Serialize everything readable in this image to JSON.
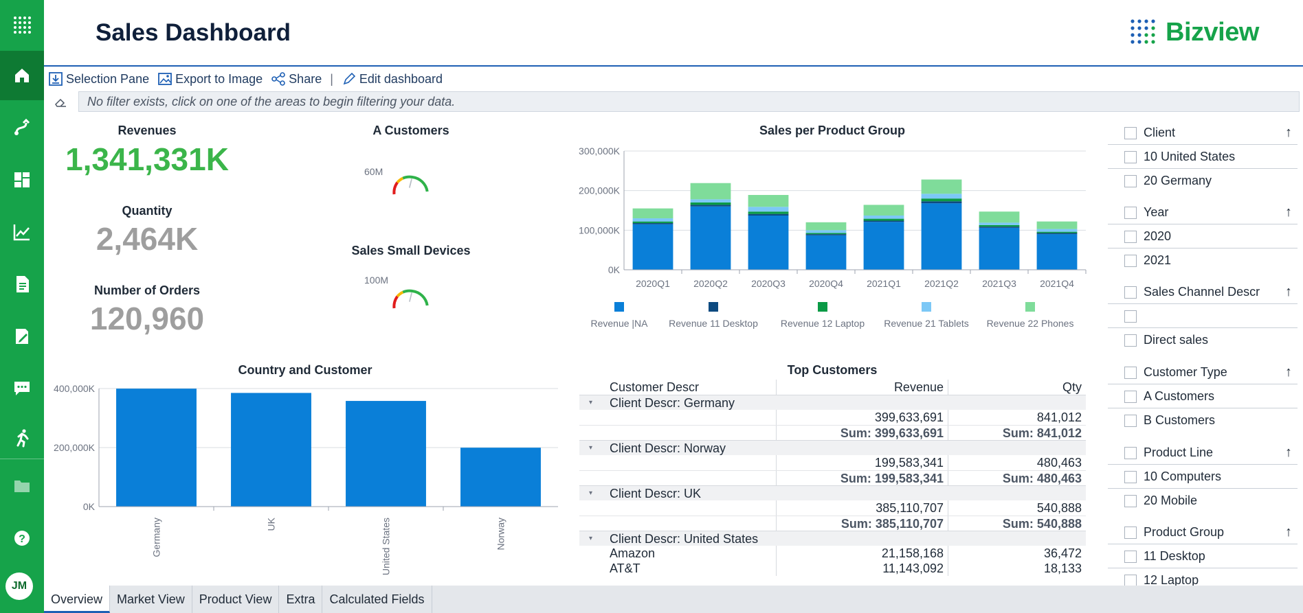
{
  "header": {
    "title": "Sales Dashboard",
    "logo_text": "Bizview"
  },
  "sidebar": {
    "items": [
      {
        "name": "home-icon",
        "active": true
      },
      {
        "name": "route-icon"
      },
      {
        "name": "dashboard-icon"
      },
      {
        "name": "line-chart-icon"
      },
      {
        "name": "document-icon"
      },
      {
        "name": "edit-document-icon"
      },
      {
        "name": "chat-icon"
      },
      {
        "name": "runner-icon"
      },
      {
        "name": "folder-icon"
      },
      {
        "name": "help-icon"
      }
    ],
    "avatar": "JM"
  },
  "toolbar": {
    "selection_pane": "Selection Pane",
    "export_image": "Export to Image",
    "share": "Share",
    "separator": "|",
    "edit_dashboard": "Edit dashboard"
  },
  "filter_bar": {
    "text": "No filter exists, click on one of the areas to begin filtering your data."
  },
  "kpis": {
    "revenues": {
      "label": "Revenues",
      "value": "1,341,331K",
      "color": "#3bb54a"
    },
    "quantity": {
      "label": "Quantity",
      "value": "2,464K",
      "color": "#9e9e9e"
    },
    "orders": {
      "label": "Number of Orders",
      "value": "120,960",
      "color": "#9e9e9e"
    }
  },
  "gauges": {
    "a_customers": {
      "title": "A Customers",
      "max_label": "60M"
    },
    "small_devices": {
      "title": "Sales Small Devices",
      "max_label": "100M"
    }
  },
  "colors": {
    "blue": "#0a7fd8",
    "dark_blue": "#0d4a80",
    "green": "#0a9a46",
    "light_blue": "#7cc8f6",
    "light_green": "#7fdc9a",
    "accent": "#16a34a"
  },
  "chart_data": [
    {
      "type": "bar",
      "stacked": true,
      "title": "Sales per Product Group",
      "categories": [
        "2020Q1",
        "2020Q2",
        "2020Q3",
        "2020Q4",
        "2021Q1",
        "2021Q2",
        "2021Q3",
        "2021Q4"
      ],
      "y_ticks": [
        "0K",
        "100,000K",
        "200,000K",
        "300,000K"
      ],
      "ylim": [
        0,
        300000
      ],
      "legend_position": "bottom",
      "series": [
        {
          "name": "Revenue |NA",
          "color": "#0a7fd8",
          "values": [
            115000,
            160000,
            137000,
            87000,
            121000,
            168000,
            106000,
            90000
          ]
        },
        {
          "name": "Revenue 11 Desktop",
          "color": "#0d4a80",
          "values": [
            3000,
            4000,
            4000,
            3000,
            3000,
            5000,
            3000,
            3000
          ]
        },
        {
          "name": "Revenue 12 Laptop",
          "color": "#0a9a46",
          "values": [
            4000,
            6000,
            6000,
            3000,
            5000,
            7000,
            4000,
            3000
          ]
        },
        {
          "name": "Revenue 21 Tablets",
          "color": "#7cc8f6",
          "values": [
            8000,
            8000,
            12000,
            7000,
            8000,
            12000,
            6000,
            7000
          ]
        },
        {
          "name": "Revenue 22 Phones",
          "color": "#7fdc9a",
          "values": [
            25000,
            41000,
            30000,
            20000,
            27000,
            36000,
            28000,
            19000
          ]
        }
      ]
    },
    {
      "type": "bar",
      "title": "Country and Customer",
      "categories": [
        "Germany",
        "UK",
        "United States",
        "Norway"
      ],
      "values": [
        399633691,
        385110707,
        358000000,
        199583341
      ],
      "y_ticks": [
        "0K",
        "200,000K",
        "400,000K"
      ],
      "ylim": [
        0,
        400000000
      ],
      "color": "#0a7fd8"
    },
    {
      "type": "table",
      "title": "Top Customers",
      "columns": [
        "Customer Descr",
        "Revenue",
        "Qty"
      ],
      "groups": [
        {
          "label": "Client Descr: Germany",
          "rows": [
            {
              "name": "",
              "revenue": "399,633,691",
              "qty": "841,012"
            }
          ],
          "sum_revenue": "Sum: 399,633,691",
          "sum_qty": "Sum: 841,012"
        },
        {
          "label": "Client Descr: Norway",
          "rows": [
            {
              "name": "",
              "revenue": "199,583,341",
              "qty": "480,463"
            }
          ],
          "sum_revenue": "Sum: 199,583,341",
          "sum_qty": "Sum: 480,463"
        },
        {
          "label": "Client Descr: UK",
          "rows": [
            {
              "name": "",
              "revenue": "385,110,707",
              "qty": "540,888"
            }
          ],
          "sum_revenue": "Sum: 385,110,707",
          "sum_qty": "Sum: 540,888"
        },
        {
          "label": "Client Descr: United States",
          "rows": [
            {
              "name": "Amazon",
              "revenue": "21,158,168",
              "qty": "36,472"
            },
            {
              "name": "AT&T",
              "revenue": "11,143,092",
              "qty": "18,133"
            }
          ]
        }
      ]
    }
  ],
  "filter_panels": [
    {
      "header": "Client",
      "items": [
        "10 United States",
        "20 Germany"
      ]
    },
    {
      "header": "Year",
      "items": [
        "2020",
        "2021"
      ]
    },
    {
      "header": "Sales Channel Descr",
      "items": [
        "",
        "Direct sales"
      ]
    },
    {
      "header": "Customer Type",
      "items": [
        "A Customers",
        "B Customers"
      ]
    },
    {
      "header": "Product Line",
      "items": [
        "10 Computers",
        "20 Mobile"
      ]
    },
    {
      "header": "Product Group",
      "items": [
        "11 Desktop",
        "12 Laptop"
      ]
    }
  ],
  "filter_sort_icon": "↑",
  "tabs": [
    "Overview",
    "Market View",
    "Product View",
    "Extra",
    "Calculated Fields"
  ]
}
